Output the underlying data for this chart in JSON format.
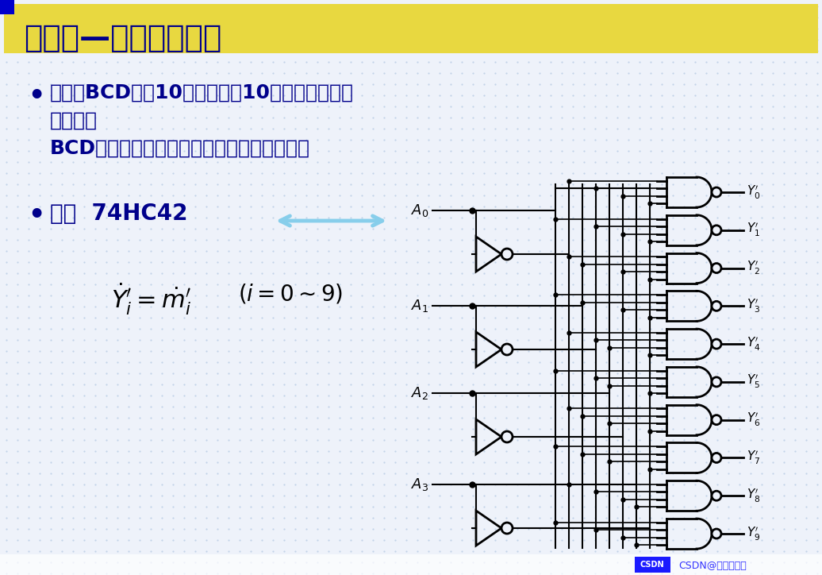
{
  "bg_color": "#eef2fa",
  "grid_color": "#b8cce4",
  "title_bg": "#e8d840",
  "title_text": "二、二—十进制译码器",
  "title_color": "#00008B",
  "text_color": "#00008B",
  "black": "#000000",
  "arrow_color": "#87CEEB",
  "bullet1_line1": "将输入BCD码的10个代码译戕10个高、低电平的",
  "bullet1_line2": "输出信号",
  "bullet1_line3": "BCD码以外的伪码，输出均无低电平信号产生",
  "bullet2": "例：  74HC42",
  "footer_text": "CSDN@在学习的茶"
}
